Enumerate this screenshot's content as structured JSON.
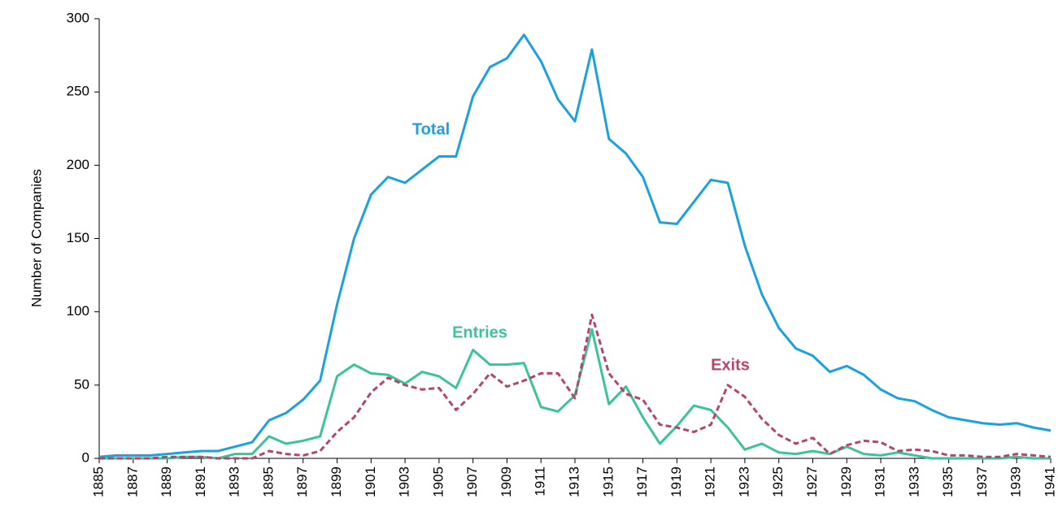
{
  "chart_data": {
    "type": "line",
    "y_label": "Number of Companies",
    "x": [
      1885,
      1886,
      1887,
      1888,
      1889,
      1890,
      1891,
      1892,
      1893,
      1894,
      1895,
      1896,
      1897,
      1898,
      1899,
      1900,
      1901,
      1902,
      1903,
      1904,
      1905,
      1906,
      1907,
      1908,
      1909,
      1910,
      1911,
      1912,
      1913,
      1914,
      1915,
      1916,
      1917,
      1918,
      1919,
      1920,
      1921,
      1922,
      1923,
      1924,
      1925,
      1926,
      1927,
      1928,
      1929,
      1930,
      1931,
      1932,
      1933,
      1934,
      1935,
      1936,
      1937,
      1938,
      1939,
      1940,
      1941
    ],
    "xlim": [
      1885,
      1941
    ],
    "xticks": [
      1885,
      1887,
      1889,
      1891,
      1893,
      1895,
      1897,
      1899,
      1901,
      1903,
      1905,
      1907,
      1909,
      1911,
      1913,
      1915,
      1917,
      1919,
      1921,
      1923,
      1925,
      1927,
      1929,
      1931,
      1933,
      1935,
      1937,
      1939,
      1941
    ],
    "ylim": [
      0,
      300
    ],
    "yticks": [
      0,
      50,
      100,
      150,
      200,
      250,
      300
    ],
    "series": [
      {
        "name": "Total",
        "color": "#1ba1dd",
        "dashed": false,
        "values": [
          1,
          2,
          2,
          2,
          3,
          4,
          5,
          5,
          8,
          11,
          26,
          31,
          40,
          53,
          105,
          150,
          180,
          192,
          188,
          197,
          206,
          206,
          247,
          267,
          273,
          289,
          271,
          245,
          230,
          279,
          218,
          208,
          192,
          161,
          160,
          175,
          190,
          188,
          145,
          112,
          89,
          75,
          70,
          59,
          63,
          57,
          47,
          41,
          39,
          33,
          28,
          26,
          24,
          23,
          24,
          21,
          19
        ]
      },
      {
        "name": "Entries",
        "color": "#3cc39a",
        "dashed": false,
        "values": [
          0,
          0,
          0,
          0,
          0,
          1,
          1,
          0,
          3,
          3,
          15,
          10,
          12,
          15,
          56,
          64,
          58,
          57,
          51,
          59,
          56,
          48,
          74,
          64,
          64,
          65,
          35,
          32,
          43,
          88,
          37,
          49,
          28,
          10,
          22,
          36,
          33,
          21,
          6,
          10,
          4,
          3,
          5,
          3,
          8,
          3,
          2,
          4,
          2,
          0,
          0,
          0,
          0,
          0,
          1,
          0,
          0
        ]
      },
      {
        "name": "Exits",
        "color": "#b5456a",
        "dashed": true,
        "values": [
          0,
          0,
          0,
          0,
          1,
          1,
          1,
          0,
          0,
          0,
          5,
          3,
          2,
          5,
          18,
          28,
          45,
          55,
          50,
          47,
          48,
          33,
          44,
          58,
          49,
          53,
          58,
          58,
          41,
          98,
          58,
          44,
          40,
          23,
          21,
          18,
          23,
          50,
          42,
          27,
          16,
          10,
          14,
          3,
          9,
          12,
          11,
          5,
          6,
          5,
          2,
          2,
          1,
          1,
          3,
          2,
          1
        ]
      }
    ]
  }
}
